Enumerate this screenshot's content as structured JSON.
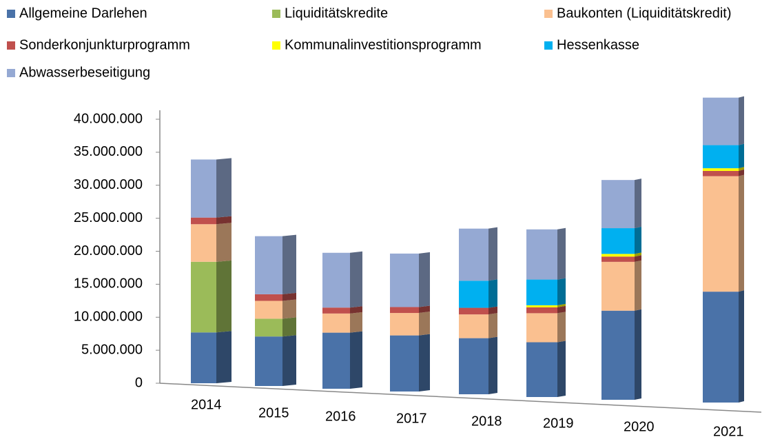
{
  "chart_data": {
    "type": "bar3d-stacked",
    "categories": [
      "2014",
      "2015",
      "2016",
      "2017",
      "2018",
      "2019",
      "2020",
      "2021"
    ],
    "series": [
      {
        "name": "Allgemeine Darlehen",
        "color": "#4a72a8",
        "values": [
          7700000,
          7500000,
          8500000,
          8500000,
          8500000,
          8300000,
          13500000,
          16800000
        ]
      },
      {
        "name": "Liquiditätskredite",
        "color": "#9bbb59",
        "values": [
          10700000,
          2700000,
          0,
          0,
          0,
          0,
          0,
          0
        ]
      },
      {
        "name": "Baukonten (Liquiditätskredit)",
        "color": "#fac090",
        "values": [
          5700000,
          2700000,
          2900000,
          3400000,
          3600000,
          4400000,
          7400000,
          17500000
        ]
      },
      {
        "name": "Sonderkonjunkturprogramm",
        "color": "#c0504d",
        "values": [
          1000000,
          1000000,
          900000,
          900000,
          1000000,
          900000,
          800000,
          800000
        ]
      },
      {
        "name": "Kommunalinvestitionsprogramm",
        "color": "#ffff00",
        "values": [
          0,
          0,
          0,
          0,
          0,
          300000,
          400000,
          400000
        ]
      },
      {
        "name": "Hessenkasse",
        "color": "#00b0f0",
        "values": [
          0,
          0,
          0,
          0,
          4100000,
          3900000,
          3900000,
          3500000
        ]
      },
      {
        "name": "Abwasserbeseitigung",
        "color": "#95a9d3",
        "values": [
          8800000,
          8800000,
          8300000,
          8100000,
          7900000,
          7600000,
          7300000,
          7200000
        ]
      }
    ],
    "ylim": [
      0,
      40000000
    ],
    "yticks": [
      {
        "value": 0,
        "label": "0"
      },
      {
        "value": 5000000,
        "label": "5.000.000"
      },
      {
        "value": 10000000,
        "label": "10.000.000"
      },
      {
        "value": 15000000,
        "label": "15.000.000"
      },
      {
        "value": 20000000,
        "label": "20.000.000"
      },
      {
        "value": 25000000,
        "label": "25.000.000"
      },
      {
        "value": 30000000,
        "label": "30.000.000"
      },
      {
        "value": 35000000,
        "label": "35.000.000"
      },
      {
        "value": 40000000,
        "label": "40.000.000"
      }
    ],
    "legend": "top"
  }
}
